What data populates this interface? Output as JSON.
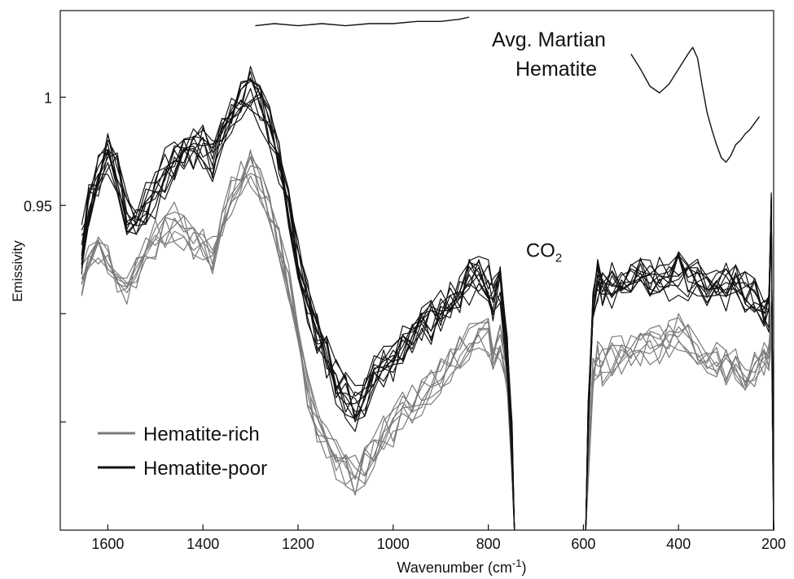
{
  "chart_data": {
    "type": "line",
    "xlabel": "Wavenumber (cm",
    "xlabel_superscript": "-1",
    "xlabel_suffix": ")",
    "ylabel": "Emissivity",
    "xlim": [
      1700,
      200
    ],
    "x_reversed": true,
    "ylim": [
      0.8,
      1.04
    ],
    "x_ticks": [
      1600,
      1400,
      1200,
      1000,
      800,
      600,
      400,
      200
    ],
    "y_ticks": [
      0.85,
      0.9,
      0.95,
      1.0
    ],
    "y_tick_labels": {
      "0.95": "0.95",
      "1.0": "1"
    },
    "annotations": {
      "co2": {
        "text": "CO",
        "subscript": "2",
        "x": 690,
        "y": 0.93
      },
      "reference_title_line1": "Avg. Martian",
      "reference_title_line2": "Hematite"
    },
    "legend": {
      "placement": "bottom-left",
      "entries": [
        {
          "label": "Hematite-rich",
          "color": "#7a7a7a"
        },
        {
          "label": "Hematite-poor",
          "color": "#111111"
        }
      ]
    },
    "series": [
      {
        "name": "Hematite-poor",
        "color": "#111111",
        "count": 12,
        "segments": [
          {
            "x": [
              1655,
              1640,
              1620,
              1600,
              1580,
              1560,
              1540,
              1520,
              1500,
              1480,
              1460,
              1440,
              1420,
              1400,
              1380,
              1360,
              1340,
              1320,
              1300,
              1280,
              1260,
              1240,
              1220,
              1200,
              1180,
              1160,
              1140,
              1120,
              1100,
              1080,
              1060,
              1040,
              1020,
              1000,
              980,
              960,
              940,
              920,
              900,
              880,
              860,
              840,
              820,
              800,
              790,
              775,
              760,
              750,
              745
            ],
            "y": [
              0.93,
              0.95,
              0.965,
              0.975,
              0.965,
              0.945,
              0.94,
              0.95,
              0.955,
              0.965,
              0.97,
              0.972,
              0.975,
              0.978,
              0.97,
              0.982,
              0.99,
              0.997,
              1.003,
              0.995,
              0.985,
              0.97,
              0.95,
              0.925,
              0.905,
              0.89,
              0.88,
              0.87,
              0.862,
              0.855,
              0.862,
              0.87,
              0.875,
              0.88,
              0.885,
              0.89,
              0.892,
              0.895,
              0.9,
              0.905,
              0.91,
              0.915,
              0.918,
              0.915,
              0.905,
              0.912,
              0.88,
              0.84,
              0.8
            ]
          },
          {
            "x": [
              595,
              590,
              580,
              570,
              560,
              540,
              520,
              500,
              480,
              460,
              440,
              420,
              400,
              380,
              360,
              340,
              320,
              300,
              280,
              260,
              240,
              220,
              210,
              205,
              200
            ],
            "y": [
              0.8,
              0.85,
              0.9,
              0.915,
              0.91,
              0.913,
              0.915,
              0.916,
              0.917,
              0.915,
              0.918,
              0.916,
              0.918,
              0.917,
              0.916,
              0.915,
              0.917,
              0.914,
              0.913,
              0.91,
              0.908,
              0.905,
              0.9,
              0.95,
              0.8
            ]
          }
        ]
      },
      {
        "name": "Hematite-rich",
        "color": "#7a7a7a",
        "count": 8,
        "segments": [
          {
            "x": [
              1655,
              1640,
              1620,
              1600,
              1580,
              1560,
              1540,
              1520,
              1500,
              1480,
              1460,
              1440,
              1420,
              1400,
              1380,
              1360,
              1340,
              1320,
              1300,
              1280,
              1260,
              1240,
              1220,
              1200,
              1180,
              1160,
              1140,
              1120,
              1100,
              1080,
              1060,
              1040,
              1020,
              1000,
              980,
              960,
              940,
              920,
              900,
              880,
              860,
              840,
              820,
              800,
              790,
              775,
              760,
              750,
              745
            ],
            "y": [
              0.915,
              0.925,
              0.93,
              0.925,
              0.918,
              0.912,
              0.92,
              0.928,
              0.935,
              0.94,
              0.942,
              0.938,
              0.935,
              0.932,
              0.928,
              0.94,
              0.955,
              0.965,
              0.968,
              0.96,
              0.95,
              0.935,
              0.915,
              0.89,
              0.865,
              0.85,
              0.84,
              0.835,
              0.828,
              0.825,
              0.83,
              0.838,
              0.845,
              0.85,
              0.855,
              0.86,
              0.862,
              0.866,
              0.872,
              0.878,
              0.884,
              0.888,
              0.892,
              0.89,
              0.88,
              0.888,
              0.87,
              0.83,
              0.8
            ]
          },
          {
            "x": [
              595,
              590,
              580,
              570,
              560,
              540,
              520,
              500,
              480,
              460,
              440,
              420,
              400,
              380,
              360,
              340,
              320,
              300,
              280,
              260,
              240,
              220,
              210,
              205,
              200
            ],
            "y": [
              0.8,
              0.83,
              0.875,
              0.88,
              0.878,
              0.88,
              0.882,
              0.884,
              0.886,
              0.885,
              0.888,
              0.89,
              0.893,
              0.89,
              0.886,
              0.882,
              0.878,
              0.876,
              0.874,
              0.872,
              0.875,
              0.88,
              0.878,
              0.9,
              0.8
            ]
          }
        ]
      },
      {
        "name": "Avg. Martian Hematite",
        "color": "#111111",
        "count": 1,
        "segments": [
          {
            "x": [
              1290,
              1250,
              1200,
              1150,
              1100,
              1050,
              1000,
              950,
              900,
              860,
              840
            ],
            "y": [
              1.033,
              1.034,
              1.033,
              1.034,
              1.033,
              1.034,
              1.034,
              1.035,
              1.035,
              1.036,
              1.037
            ]
          },
          {
            "x": [
              500,
              480,
              460,
              440,
              420,
              400,
              380,
              370,
              360,
              350,
              340,
              330,
              320,
              310,
              300,
              290,
              280,
              270,
              260,
              250,
              240,
              230
            ],
            "y": [
              1.02,
              1.013,
              1.005,
              1.002,
              1.006,
              1.013,
              1.02,
              1.023,
              1.018,
              1.005,
              0.993,
              0.985,
              0.978,
              0.972,
              0.97,
              0.973,
              0.978,
              0.98,
              0.983,
              0.985,
              0.988,
              0.991
            ]
          }
        ]
      }
    ]
  }
}
